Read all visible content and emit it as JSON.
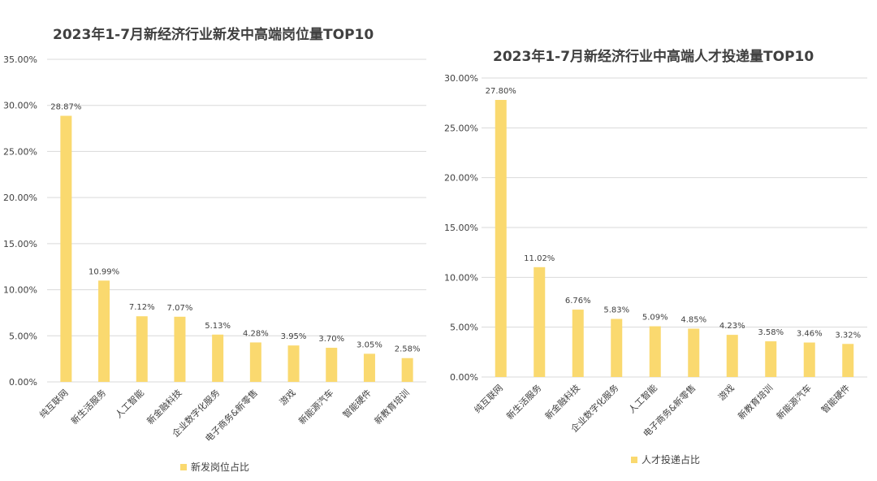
{
  "colors": {
    "bar": "#FAD96F",
    "grid": "#D9D9D9",
    "text": "#404040"
  },
  "chart_data": [
    {
      "type": "bar",
      "title": "2023年1-7月新经济行业新发中高端岗位量TOP10",
      "legend": "新发岗位占比",
      "legend_position": "bottom",
      "grid": true,
      "ylim": [
        0,
        35
      ],
      "yticks": [
        "0.00%",
        "5.00%",
        "10.00%",
        "15.00%",
        "20.00%",
        "25.00%",
        "30.00%",
        "35.00%"
      ],
      "categories": [
        "纯互联网",
        "新生活服务",
        "人工智能",
        "新金融科技",
        "企业数字化服务",
        "电子商务&新零售",
        "游戏",
        "新能源汽车",
        "智能硬件",
        "新教育培训"
      ],
      "values": [
        28.87,
        10.99,
        7.12,
        7.07,
        5.13,
        4.28,
        3.95,
        3.7,
        3.05,
        2.58
      ],
      "labels": [
        "28.87%",
        "10.99%",
        "7.12%",
        "7.07%",
        "5.13%",
        "4.28%",
        "3.95%",
        "3.70%",
        "3.05%",
        "2.58%"
      ]
    },
    {
      "type": "bar",
      "title": "2023年1-7月新经济行业中高端人才投递量TOP10",
      "legend": "人才投递占比",
      "legend_position": "bottom",
      "grid": true,
      "ylim": [
        0,
        30
      ],
      "yticks": [
        "0.00%",
        "5.00%",
        "10.00%",
        "15.00%",
        "20.00%",
        "25.00%",
        "30.00%"
      ],
      "categories": [
        "纯互联网",
        "新生活服务",
        "新金融科技",
        "企业数字化服务",
        "人工智能",
        "电子商务&新零售",
        "游戏",
        "新教育培训",
        "新能源汽车",
        "智能硬件"
      ],
      "values": [
        27.8,
        11.02,
        6.76,
        5.83,
        5.09,
        4.85,
        4.23,
        3.58,
        3.46,
        3.32
      ],
      "labels": [
        "27.80%",
        "11.02%",
        "6.76%",
        "5.83%",
        "5.09%",
        "4.85%",
        "4.23%",
        "3.58%",
        "3.46%",
        "3.32%"
      ]
    }
  ]
}
